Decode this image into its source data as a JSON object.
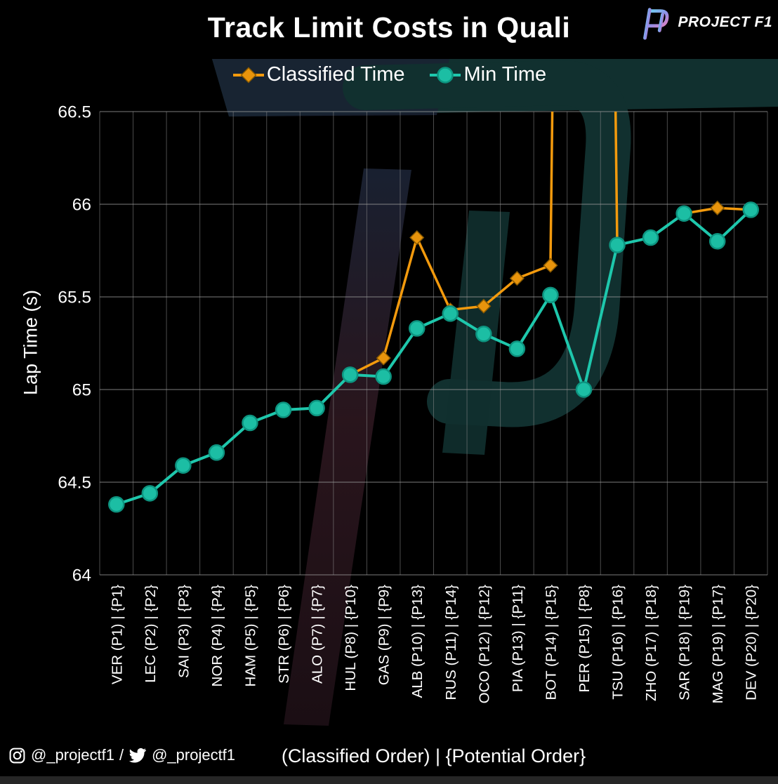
{
  "header": {
    "title": "Track Limit Costs in Quali",
    "brand": "PROJECT F1"
  },
  "legend": {
    "items": [
      {
        "label": "Classified Time",
        "marker": "diamond",
        "color": "#E8940C",
        "edge": "#8A5A00",
        "line": "#F39A0D"
      },
      {
        "label": "Min Time",
        "marker": "circle",
        "color": "#1CBEA4",
        "edge": "#0D9480",
        "line": "#1EC7AC"
      }
    ]
  },
  "footer": {
    "instagram_handle": "@_projectf1",
    "separator": "/",
    "twitter_handle": "@_projectf1"
  },
  "chart_data": {
    "type": "line",
    "title": "Track Limit Costs in Quali",
    "xlabel": "(Classified Order)  |  {Potential Order}",
    "ylabel": "Lap Time (s)",
    "ylim": [
      64,
      66.5
    ],
    "yticks": [
      66.5,
      66,
      65.5,
      65,
      64.5,
      64
    ],
    "ytick_labels": [
      "66.5",
      "66",
      "65.5",
      "65",
      "64.5",
      "64"
    ],
    "grid": true,
    "legend_position": "top",
    "categories": [
      "VER (P1) | {P1}",
      "LEC (P2) | {P2}",
      "SAI (P3) | {P3}",
      "NOR (P4) | {P4}",
      "HAM (P5) | {P5}",
      "STR (P6) | {P6}",
      "ALO (P7) | {P7}",
      "HUL (P8) | {P10}",
      "GAS (P9) | {P9}",
      "ALB (P10) | {P13}",
      "RUS (P11) | {P14}",
      "OCO (P12) | {P12}",
      "PIA (P13) | {P11}",
      "BOT (P14) | {P15}",
      "PER (P15) | {P8}",
      "TSU (P16) | {P16}",
      "ZHO (P17) | {P18}",
      "SAR (P18) | {P19}",
      "MAG (P19) | {P17}",
      "DEV (P20) | {P20}"
    ],
    "series": [
      {
        "name": "Classified Time",
        "color": "#E8940C",
        "line_color": "#F39A0D",
        "edge_color": "#8A5A00",
        "marker": "diamond",
        "values": [
          64.38,
          64.44,
          64.59,
          64.66,
          64.82,
          64.89,
          64.9,
          65.08,
          65.17,
          65.82,
          65.43,
          65.45,
          65.6,
          65.67,
          null,
          65.78,
          65.82,
          65.95,
          65.98,
          65.97
        ],
        "note": "PER (P15) classified time spikes above the 66.5s axis limit and is clipped at the top of the chart"
      },
      {
        "name": "Min Time",
        "color": "#1CBEA4",
        "line_color": "#1EC7AC",
        "edge_color": "#0D9480",
        "marker": "circle",
        "values": [
          64.38,
          64.44,
          64.59,
          64.66,
          64.82,
          64.89,
          64.9,
          65.08,
          65.07,
          65.33,
          65.41,
          65.3,
          65.22,
          65.51,
          65.0,
          65.78,
          65.82,
          65.95,
          65.8,
          65.97
        ]
      }
    ]
  },
  "style": {
    "background": "#000000",
    "text": "#FFFFFF",
    "grid_h": "#9B9B9B",
    "grid_v": "#8A8A8A",
    "watermark_teal": "#11302F",
    "watermark_navy": "#1A2233",
    "watermark_maroon": "#2B161E",
    "bottom_strip": "#262626",
    "logo_gradient": [
      "#6AD6F2",
      "#8F8FE8",
      "#E37FC0"
    ]
  }
}
